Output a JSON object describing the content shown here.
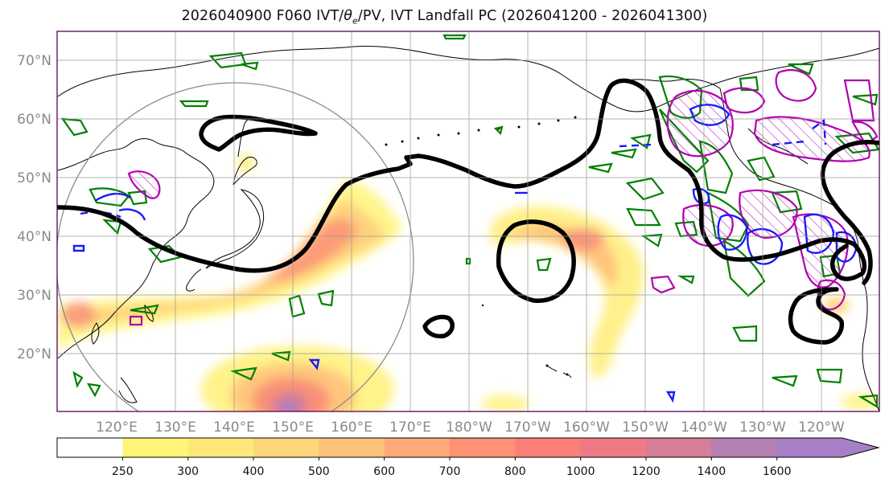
{
  "title_prefix": "2026040900 F060 IVT/",
  "title_theta": "θ",
  "title_theta_sub": "e",
  "title_suffix": "/PV, IVT Landfall PC (2026041200 - 2026041300)",
  "lat_labels": [
    "70°N",
    "60°N",
    "50°N",
    "40°N",
    "30°N",
    "20°N"
  ],
  "lon_labels": [
    "120°E",
    "130°E",
    "140°E",
    "150°E",
    "160°E",
    "170°E",
    "180°W",
    "170°W",
    "160°W",
    "150°W",
    "140°W",
    "130°W",
    "120°W"
  ],
  "colorbar": {
    "ticks": [
      "250",
      "300",
      "400",
      "500",
      "600",
      "700",
      "800",
      "1000",
      "1200",
      "1400",
      "1600"
    ],
    "colors": [
      "#ffffff",
      "#fff576",
      "#ffe87a",
      "#ffd57c",
      "#ffc27c",
      "#ffaa78",
      "#ff9174",
      "#fa7f78",
      "#ee7a85",
      "#d67d98",
      "#b47fb3",
      "#a67fc7"
    ]
  },
  "colors": {
    "ivt_contour_black": "#000000",
    "theta_e_green": "#008000",
    "pv_magenta": "#b000b0",
    "pv_blue": "#1a1aff",
    "landfall_circle": "#8c8c8c",
    "grid": "#9a9a9a",
    "frame": "#5a005a"
  }
}
